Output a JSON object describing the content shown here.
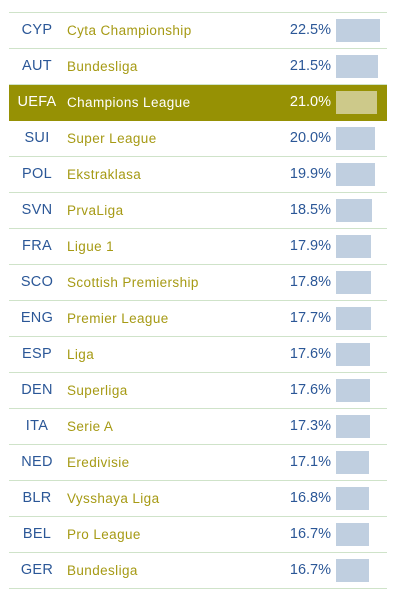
{
  "chart_data": {
    "type": "table",
    "columns": [
      "code",
      "league",
      "value"
    ],
    "max_value": 22.5,
    "rows": [
      {
        "code": "CYP",
        "league": "Cyta Championship",
        "value": 22.5,
        "label": "22.5%"
      },
      {
        "code": "AUT",
        "league": "Bundesliga",
        "value": 21.5,
        "label": "21.5%"
      },
      {
        "code": "UEFA",
        "league": "Champions League",
        "value": 21.0,
        "label": "21.0%",
        "highlight": true
      },
      {
        "code": "SUI",
        "league": "Super League",
        "value": 20.0,
        "label": "20.0%"
      },
      {
        "code": "POL",
        "league": "Ekstraklasa",
        "value": 19.9,
        "label": "19.9%"
      },
      {
        "code": "SVN",
        "league": "PrvaLiga",
        "value": 18.5,
        "label": "18.5%"
      },
      {
        "code": "FRA",
        "league": "Ligue 1",
        "value": 17.9,
        "label": "17.9%"
      },
      {
        "code": "SCO",
        "league": "Scottish Premiership",
        "value": 17.8,
        "label": "17.8%"
      },
      {
        "code": "ENG",
        "league": "Premier League",
        "value": 17.7,
        "label": "17.7%"
      },
      {
        "code": "ESP",
        "league": "Liga",
        "value": 17.6,
        "label": "17.6%"
      },
      {
        "code": "DEN",
        "league": "Superliga",
        "value": 17.6,
        "label": "17.6%"
      },
      {
        "code": "ITA",
        "league": "Serie A",
        "value": 17.3,
        "label": "17.3%"
      },
      {
        "code": "NED",
        "league": "Eredivisie",
        "value": 17.1,
        "label": "17.1%"
      },
      {
        "code": "BLR",
        "league": "Vysshaya Liga",
        "value": 16.8,
        "label": "16.8%"
      },
      {
        "code": "BEL",
        "league": "Pro League",
        "value": 16.7,
        "label": "16.7%"
      },
      {
        "code": "GER",
        "league": "Bundesliga",
        "value": 16.7,
        "label": "16.7%"
      }
    ]
  }
}
